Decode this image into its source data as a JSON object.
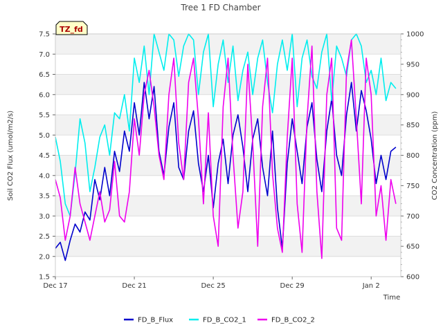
{
  "chart_data": {
    "type": "line",
    "title": "Tree 1 FD Chamber",
    "xlabel": "Time",
    "ylabel": "Soil CO2 Flux (umol/m2/s)",
    "y2label": "CO2 Concentration (ppm)",
    "badge": "TZ_fd",
    "xlim": [
      0,
      17.5
    ],
    "ylim": [
      1.5,
      7.5
    ],
    "y2lim": [
      600,
      1000
    ],
    "x_ticks": [
      {
        "x": 0,
        "label": "Dec 17"
      },
      {
        "x": 4,
        "label": "Dec 21"
      },
      {
        "x": 8,
        "label": "Dec 25"
      },
      {
        "x": 12,
        "label": "Dec 29"
      },
      {
        "x": 16,
        "label": "Jan 2"
      }
    ],
    "y_ticks": [
      "1.5",
      "2.0",
      "2.5",
      "3.0",
      "3.5",
      "4.0",
      "4.5",
      "5.0",
      "5.5",
      "6.0",
      "6.5",
      "7.0",
      "7.5"
    ],
    "y2_ticks": [
      "600",
      "650",
      "700",
      "750",
      "800",
      "850",
      "900",
      "950",
      "1000"
    ],
    "grid": true,
    "legend_position": "bottom",
    "x_unit_note": "days since Dec 17",
    "series": [
      {
        "name": "FD_B_Flux",
        "axis": "left",
        "color": "#0000cc",
        "x": [
          0.0,
          0.25,
          0.5,
          0.75,
          1.0,
          1.25,
          1.5,
          1.75,
          2.0,
          2.25,
          2.5,
          2.75,
          3.0,
          3.25,
          3.5,
          3.75,
          4.0,
          4.25,
          4.5,
          4.75,
          5.0,
          5.25,
          5.5,
          5.75,
          6.0,
          6.25,
          6.5,
          6.75,
          7.0,
          7.25,
          7.5,
          7.75,
          8.0,
          8.25,
          8.5,
          8.75,
          9.0,
          9.25,
          9.5,
          9.75,
          10.0,
          10.25,
          10.5,
          10.75,
          11.0,
          11.25,
          11.5,
          11.75,
          12.0,
          12.25,
          12.5,
          12.75,
          13.0,
          13.25,
          13.5,
          13.75,
          14.0,
          14.25,
          14.5,
          14.75,
          15.0,
          15.25,
          15.5,
          15.75,
          16.0,
          16.25,
          16.5,
          16.75,
          17.0,
          17.25
        ],
        "values": [
          2.2,
          2.35,
          1.9,
          2.4,
          2.8,
          2.6,
          3.1,
          2.9,
          3.9,
          3.4,
          4.2,
          3.5,
          4.6,
          4.1,
          5.1,
          4.6,
          5.8,
          5.0,
          6.3,
          5.4,
          6.2,
          4.6,
          4.0,
          5.2,
          5.8,
          4.2,
          3.9,
          5.1,
          5.6,
          4.3,
          3.6,
          4.5,
          3.2,
          4.3,
          4.9,
          3.8,
          5.0,
          5.5,
          4.7,
          3.6,
          4.9,
          5.4,
          4.2,
          3.5,
          5.1,
          3.2,
          2.2,
          4.3,
          5.4,
          4.6,
          3.8,
          5.2,
          5.8,
          4.4,
          3.6,
          5.1,
          5.9,
          4.5,
          4.0,
          5.5,
          6.3,
          5.1,
          6.1,
          5.6,
          4.9,
          3.8,
          4.5,
          3.9,
          4.6,
          4.7
        ]
      },
      {
        "name": "FD_B_CO2_1",
        "axis": "right",
        "color": "#00eeee",
        "x": [
          0.0,
          0.25,
          0.5,
          0.75,
          1.0,
          1.25,
          1.5,
          1.75,
          2.0,
          2.25,
          2.5,
          2.75,
          3.0,
          3.25,
          3.5,
          3.75,
          4.0,
          4.25,
          4.5,
          4.75,
          5.0,
          5.25,
          5.5,
          5.75,
          6.0,
          6.25,
          6.5,
          6.75,
          7.0,
          7.25,
          7.5,
          7.75,
          8.0,
          8.25,
          8.5,
          8.75,
          9.0,
          9.25,
          9.5,
          9.75,
          10.0,
          10.25,
          10.5,
          10.75,
          11.0,
          11.25,
          11.5,
          11.75,
          12.0,
          12.25,
          12.5,
          12.75,
          13.0,
          13.25,
          13.5,
          13.75,
          14.0,
          14.25,
          14.5,
          14.75,
          15.0,
          15.25,
          15.5,
          15.75,
          16.0,
          16.25,
          16.5,
          16.75,
          17.0,
          17.25
        ],
        "values": [
          830,
          790,
          720,
          700,
          770,
          860,
          820,
          740,
          780,
          830,
          850,
          800,
          870,
          860,
          900,
          840,
          960,
          920,
          980,
          900,
          1000,
          970,
          940,
          1000,
          990,
          930,
          980,
          1000,
          990,
          900,
          970,
          1000,
          880,
          950,
          990,
          920,
          980,
          890,
          940,
          970,
          900,
          960,
          990,
          920,
          870,
          950,
          990,
          940,
          1000,
          880,
          960,
          990,
          930,
          910,
          970,
          1000,
          890,
          980,
          960,
          930,
          990,
          1000,
          980,
          920,
          940,
          900,
          960,
          890,
          920,
          910
        ]
      },
      {
        "name": "FD_B_CO2_2",
        "axis": "right",
        "color": "#ee00ee",
        "x": [
          0.0,
          0.25,
          0.5,
          0.75,
          1.0,
          1.25,
          1.5,
          1.75,
          2.0,
          2.25,
          2.5,
          2.75,
          3.0,
          3.25,
          3.5,
          3.75,
          4.0,
          4.25,
          4.5,
          4.75,
          5.0,
          5.25,
          5.5,
          5.75,
          6.0,
          6.25,
          6.5,
          6.75,
          7.0,
          7.25,
          7.5,
          7.75,
          8.0,
          8.25,
          8.5,
          8.75,
          9.0,
          9.25,
          9.5,
          9.75,
          10.0,
          10.25,
          10.5,
          10.75,
          11.0,
          11.25,
          11.5,
          11.75,
          12.0,
          12.25,
          12.5,
          12.75,
          13.0,
          13.25,
          13.5,
          13.75,
          14.0,
          14.25,
          14.5,
          14.75,
          15.0,
          15.25,
          15.5,
          15.75,
          16.0,
          16.25,
          16.5,
          16.75,
          17.0,
          17.25
        ],
        "values": [
          760,
          730,
          660,
          700,
          780,
          720,
          690,
          660,
          700,
          740,
          690,
          710,
          790,
          700,
          690,
          740,
          860,
          800,
          900,
          940,
          880,
          800,
          760,
          900,
          960,
          820,
          760,
          920,
          960,
          860,
          720,
          870,
          700,
          650,
          880,
          960,
          800,
          680,
          740,
          950,
          820,
          650,
          880,
          960,
          770,
          680,
          640,
          830,
          960,
          720,
          640,
          860,
          980,
          740,
          630,
          900,
          960,
          680,
          660,
          940,
          990,
          860,
          720,
          960,
          900,
          700,
          750,
          660,
          760,
          720
        ]
      }
    ]
  }
}
